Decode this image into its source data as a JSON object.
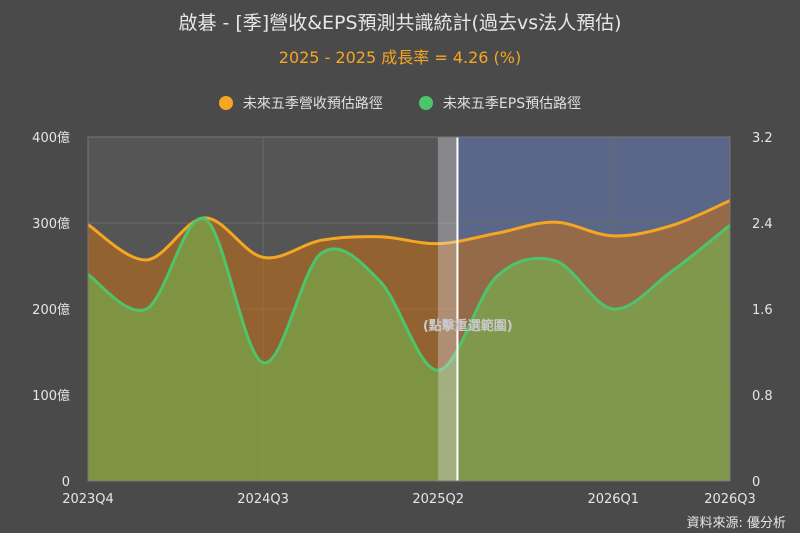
{
  "title": "啟碁 - [季]營收&EPS預測共識統計(過去vs法人預估)",
  "subtitle": "2025 - 2025 成長率 = 4.26 (%)",
  "legend": [
    {
      "label": "未來五季營收預估路徑",
      "color": "#f5a623"
    },
    {
      "label": "未來五季EPS預估路徑",
      "color": "#4ec46a"
    }
  ],
  "selection_hint": "(點擊重選範圍)",
  "source": "資料來源: 優分析",
  "chart_data": {
    "type": "area",
    "x_ticks": [
      "2023Q4",
      "2024Q3",
      "2025Q2",
      "2026Q1",
      "2026Q3"
    ],
    "x_tick_positions": [
      0,
      3,
      6,
      9,
      11
    ],
    "x": [
      0,
      1,
      2,
      3,
      4,
      5,
      6,
      7,
      8,
      9,
      10,
      11
    ],
    "left_axis": {
      "ylim": [
        0,
        400
      ],
      "ticks": [
        "0",
        "100億",
        "200億",
        "300億",
        "400億"
      ],
      "tick_values": [
        0,
        100,
        200,
        300,
        400
      ]
    },
    "right_axis": {
      "ylim": [
        0,
        3.2
      ],
      "ticks": [
        "0",
        "0.8",
        "1.6",
        "2.4",
        "3.2"
      ],
      "tick_values": [
        0,
        0.8,
        1.6,
        2.4,
        3.2
      ]
    },
    "series": [
      {
        "name": "未來五季營收預估路徑",
        "axis": "left",
        "color": "#f5a623",
        "values": [
          298,
          257,
          306,
          260,
          280,
          284,
          276,
          288,
          301,
          285,
          297,
          326
        ]
      },
      {
        "name": "未來五季EPS預估路徑",
        "axis": "right",
        "color": "#4ec46a",
        "values": [
          1.92,
          1.6,
          2.44,
          1.1,
          2.12,
          1.86,
          1.03,
          1.9,
          2.05,
          1.6,
          1.95,
          2.38
        ]
      }
    ],
    "selection": {
      "from": 6,
      "to": 6.33
    },
    "forecast_start": 6.33,
    "grid": true
  }
}
